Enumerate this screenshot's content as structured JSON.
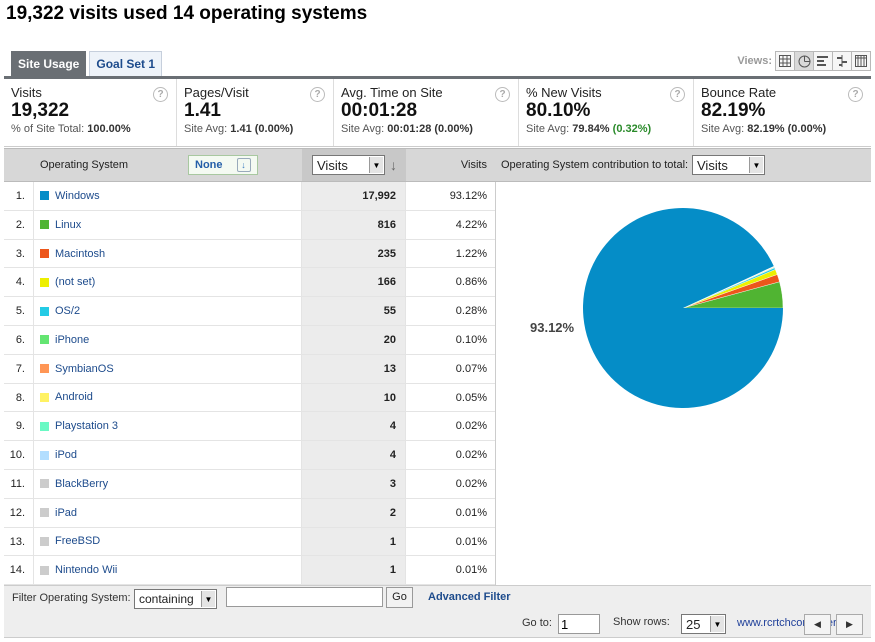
{
  "title": "19,322 visits used 14 operating systems",
  "tabs": [
    {
      "label": "Site Usage",
      "active": true
    },
    {
      "label": "Goal Set 1",
      "active": false
    }
  ],
  "views": {
    "label": "Views:",
    "buttons": [
      "table-icon",
      "pie-icon",
      "bar-icon",
      "compare-icon",
      "pivot-icon"
    ],
    "selected": "pie-icon"
  },
  "summary": [
    {
      "label": "Visits",
      "value": "19,322",
      "sub_prefix": "% of Site Total: ",
      "sub_bold": "100.00%",
      "sub_pos": ""
    },
    {
      "label": "Pages/Visit",
      "value": "1.41",
      "sub_prefix": "Site Avg: ",
      "sub_bold": "1.41 (0.00%)",
      "sub_pos": ""
    },
    {
      "label": "Avg. Time on Site",
      "value": "00:01:28",
      "sub_prefix": "Site Avg: ",
      "sub_bold": "00:01:28 (0.00%)",
      "sub_pos": ""
    },
    {
      "label": "% New Visits",
      "value": "80.10%",
      "sub_prefix": "Site Avg: ",
      "sub_bold": "79.84% ",
      "sub_pos": "(0.32%)"
    },
    {
      "label": "Bounce Rate",
      "value": "82.19%",
      "sub_prefix": "Site Avg: ",
      "sub_bold": "82.19% (0.00%)",
      "sub_pos": ""
    }
  ],
  "table_header": {
    "dimension": "Operating System",
    "segment_button": "None",
    "metric_select": "Visits",
    "metric_col": "Visits",
    "contribution_label": "Operating System contribution to total:",
    "contribution_select": "Visits"
  },
  "rows": [
    {
      "num": "1.",
      "name": "Windows",
      "value": "17,992",
      "pct": "93.12%",
      "color": "#058dc7"
    },
    {
      "num": "2.",
      "name": "Linux",
      "value": "816",
      "pct": "4.22%",
      "color": "#50b432"
    },
    {
      "num": "3.",
      "name": "Macintosh",
      "value": "235",
      "pct": "1.22%",
      "color": "#ed561b"
    },
    {
      "num": "4.",
      "name": "(not set)",
      "value": "166",
      "pct": "0.86%",
      "color": "#edef00"
    },
    {
      "num": "5.",
      "name": "OS/2",
      "value": "55",
      "pct": "0.28%",
      "color": "#24cbe5"
    },
    {
      "num": "6.",
      "name": "iPhone",
      "value": "20",
      "pct": "0.10%",
      "color": "#64e572"
    },
    {
      "num": "7.",
      "name": "SymbianOS",
      "value": "13",
      "pct": "0.07%",
      "color": "#ff9655"
    },
    {
      "num": "8.",
      "name": "Android",
      "value": "10",
      "pct": "0.05%",
      "color": "#fff263"
    },
    {
      "num": "9.",
      "name": "Playstation 3",
      "value": "4",
      "pct": "0.02%",
      "color": "#6af9c4"
    },
    {
      "num": "10.",
      "name": "iPod",
      "value": "4",
      "pct": "0.02%",
      "color": "#b2deff"
    },
    {
      "num": "11.",
      "name": "BlackBerry",
      "value": "3",
      "pct": "0.02%",
      "color": "#cccccc"
    },
    {
      "num": "12.",
      "name": "iPad",
      "value": "2",
      "pct": "0.01%",
      "color": "#cccccc"
    },
    {
      "num": "13.",
      "name": "FreeBSD",
      "value": "1",
      "pct": "0.01%",
      "color": "#cccccc"
    },
    {
      "num": "14.",
      "name": "Nintendo Wii",
      "value": "1",
      "pct": "0.01%",
      "color": "#cccccc"
    }
  ],
  "pie_label": "93.12%",
  "footer": {
    "filter_label": "Filter Operating System:",
    "filter_mode": "containing",
    "filter_value": "",
    "go": "Go",
    "advanced": "Advanced Filter",
    "goto_label": "Go to:",
    "goto_value": "1",
    "show_rows_label": "Show rows:",
    "show_rows_value": "25",
    "watermark": "www.rcrtchcomputer.tk"
  }
}
